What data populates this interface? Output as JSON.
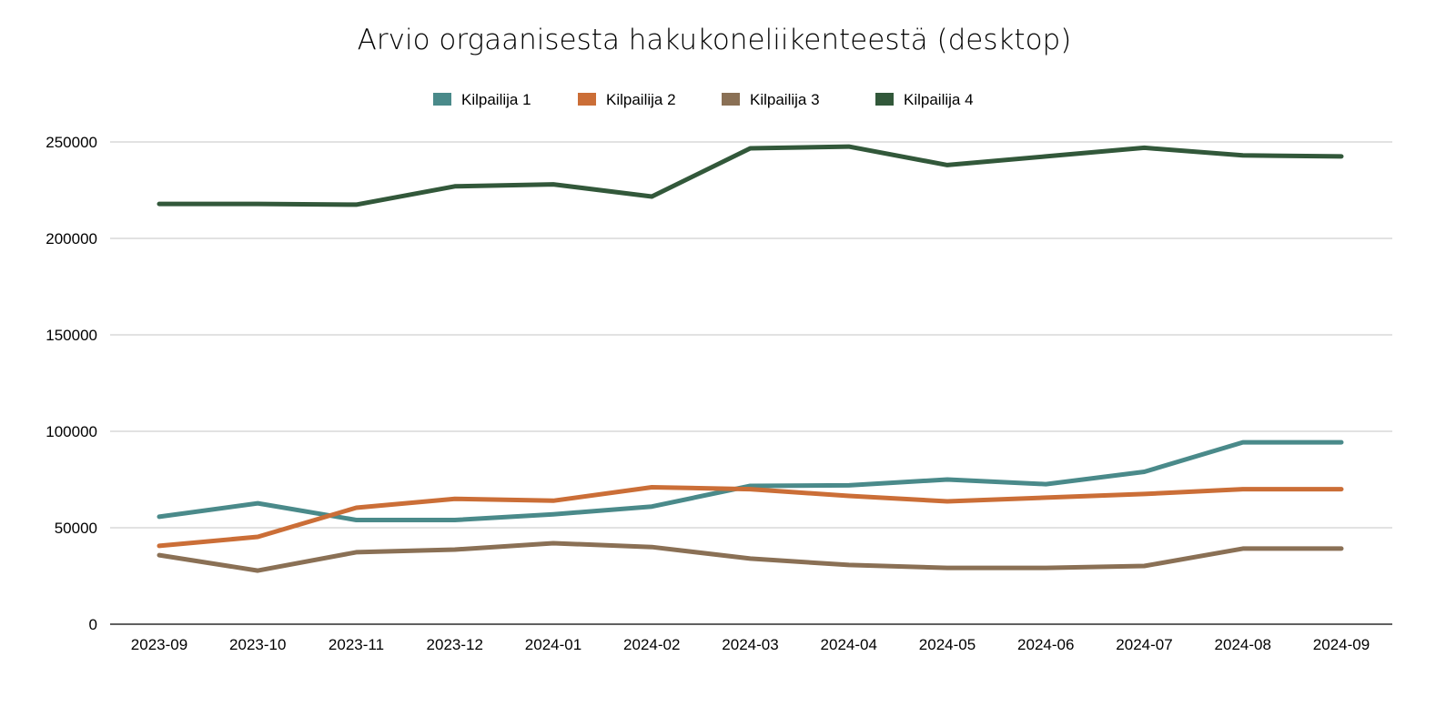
{
  "chart_data": {
    "type": "line",
    "title": "Arvio orgaanisesta hakukoneliikenteestä (desktop)",
    "xlabel": "",
    "ylabel": "",
    "ylim": [
      0,
      250000
    ],
    "yticks": [
      "0",
      "50000",
      "100000",
      "150000",
      "200000",
      "250000"
    ],
    "ytick_values": [
      0,
      50000,
      100000,
      150000,
      200000,
      250000
    ],
    "grid": true,
    "legend_position": "top",
    "categories": [
      "2023-09",
      "2023-10",
      "2023-11",
      "2023-12",
      "2024-01",
      "2024-02",
      "2024-03",
      "2024-04",
      "2024-05",
      "2024-06",
      "2024-07",
      "2024-08",
      "2024-09"
    ],
    "series": [
      {
        "name": "Kilpailija 1",
        "color": "#4a8a8a",
        "values": [
          55700,
          62700,
          54000,
          54000,
          57000,
          61000,
          71700,
          72000,
          75000,
          72600,
          79000,
          94300,
          94300
        ]
      },
      {
        "name": "Kilpailija 2",
        "color": "#cb6e37",
        "values": [
          40600,
          45300,
          60400,
          65000,
          64000,
          71000,
          70000,
          66500,
          63700,
          65600,
          67500,
          70000,
          70000
        ]
      },
      {
        "name": "Kilpailija 3",
        "color": "#8a7055",
        "values": [
          35800,
          27800,
          37300,
          38700,
          42000,
          40000,
          34000,
          30700,
          29200,
          29200,
          30200,
          39200,
          39200
        ]
      },
      {
        "name": "Kilpailija 4",
        "color": "#32583a",
        "values": [
          217900,
          217900,
          217500,
          227000,
          228000,
          221700,
          246700,
          247600,
          238000,
          242500,
          247000,
          243000,
          242500
        ]
      }
    ]
  }
}
